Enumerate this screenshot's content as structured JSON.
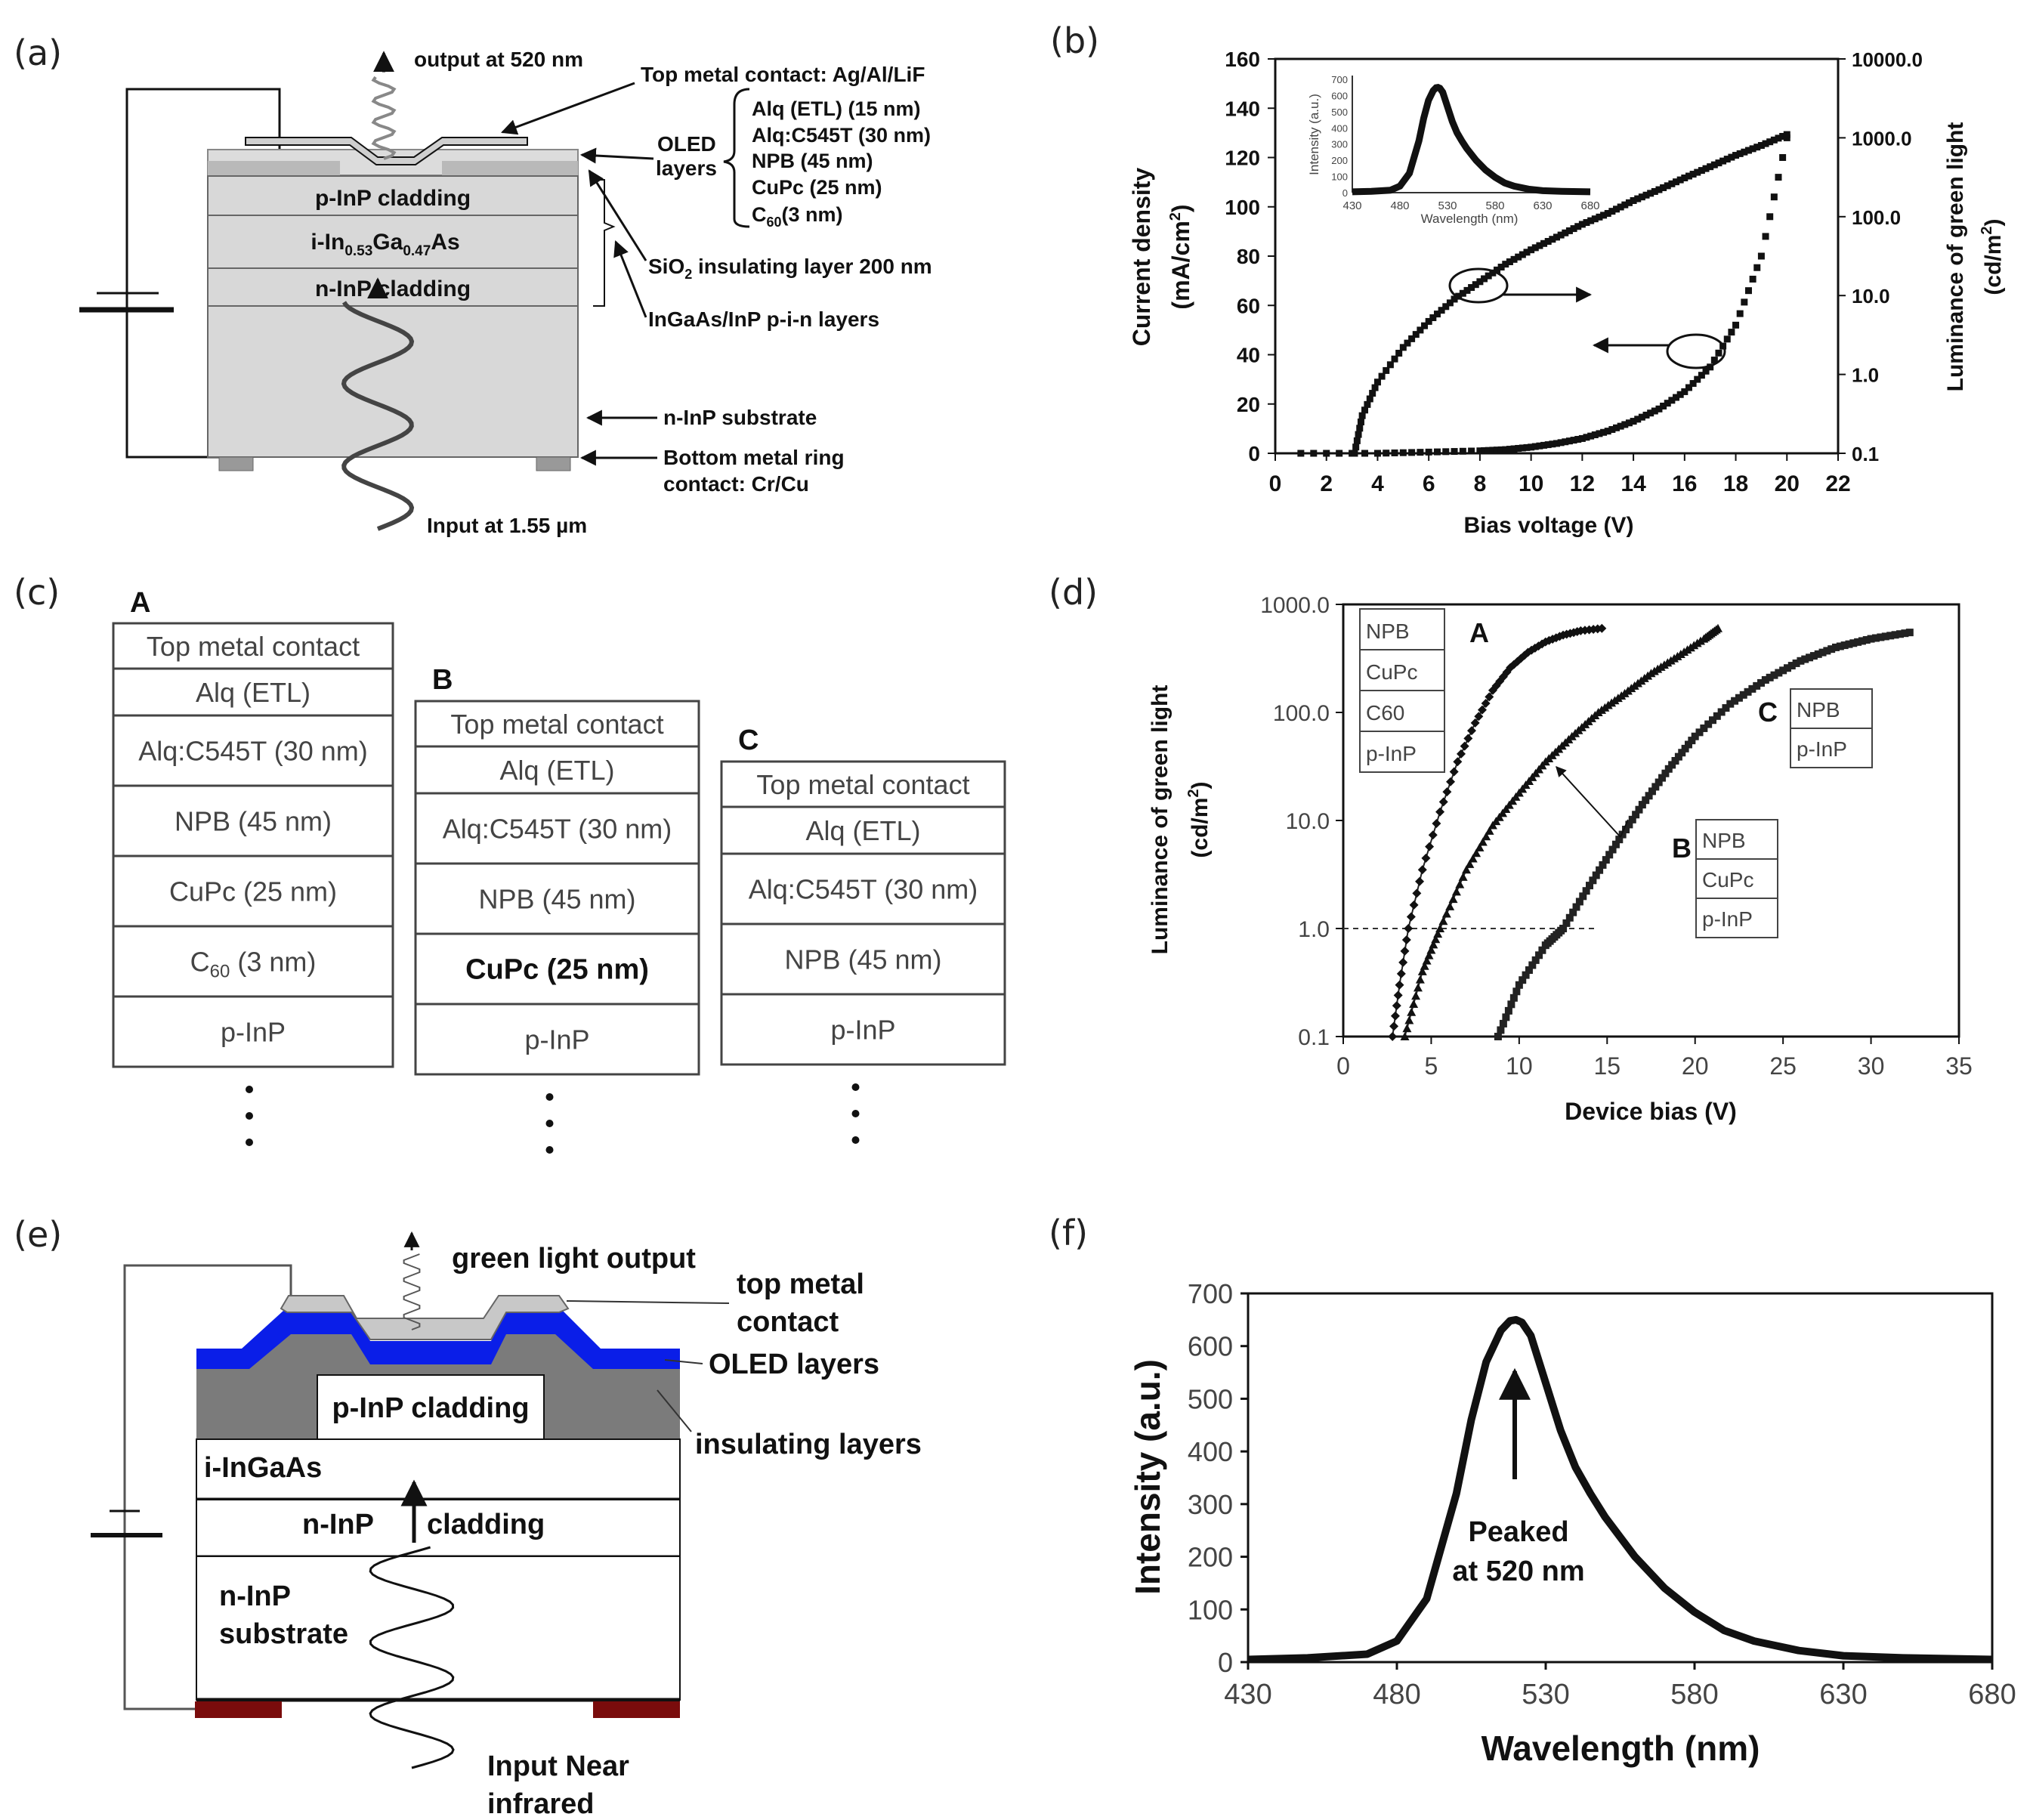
{
  "panels": {
    "a": "(a)",
    "b": "(b)",
    "c": "(c)",
    "d": "(d)",
    "e": "(e)",
    "f": "(f)"
  },
  "a": {
    "output": "output at 520 nm",
    "top_contact": "Top metal contact: Ag/Al/LiF",
    "oled": "OLED",
    "layers_word": "layers",
    "oled_layers": [
      "Alq (ETL) (15 nm)",
      "Alq:C545T (30 nm)",
      "NPB (45 nm)",
      "CuPc (25 nm)",
      "C60(3 nm)"
    ],
    "p_clad": "p-InP cladding",
    "i_layer": "i-In0.53Ga0.47As",
    "n_clad": "n-InP cladding",
    "sio2": "SiO2 insulating layer 200 nm",
    "pin": "InGaAs/InP p-i-n layers",
    "substrate": "n-InP substrate",
    "bottom1": "Bottom metal ring",
    "bottom2": "contact: Cr/Cu",
    "input": "Input at 1.55 µm"
  },
  "c": {
    "stacks": [
      {
        "name": "A",
        "layers": [
          "Top metal contact",
          "Alq (ETL)",
          "Alq:C545T (30 nm)",
          "NPB (45 nm)",
          "CuPc (25 nm)",
          "C60 (3 nm)",
          "p-InP"
        ]
      },
      {
        "name": "B",
        "layers": [
          "Top metal contact",
          "Alq (ETL)",
          "Alq:C545T (30 nm)",
          "NPB (45 nm)",
          "CuPc (25 nm)",
          "p-InP"
        ]
      },
      {
        "name": "C",
        "layers": [
          "Top metal contact",
          "Alq (ETL)",
          "Alq:C545T (30 nm)",
          "NPB (45 nm)",
          "p-InP"
        ]
      }
    ]
  },
  "e": {
    "output": "green light output",
    "top1": "top metal",
    "top2": "contact",
    "oled": "OLED layers",
    "p_clad": "p-InP cladding",
    "insulating": "insulating layers",
    "i_layer": "i-InGaAs",
    "n_left": "n-InP",
    "n_right": "cladding",
    "sub1": "n-InP",
    "sub2": "substrate",
    "in1": "Input Near",
    "in2": "infrared",
    "colors": {
      "oled": "#0a1ee8",
      "insulating": "#7b7b7b",
      "contact": "#c8c8c8",
      "ring": "#7a0c0c"
    }
  },
  "chart_data": [
    {
      "id": "b",
      "type": "scatter",
      "xlabel": "Bias voltage (V)",
      "ylabel": "Current density (mA/cm2)",
      "y2label": "Luminance of green light (cd/m2)",
      "xlim": [
        0,
        22
      ],
      "ylim": [
        0,
        160
      ],
      "y2lim": [
        0.1,
        10000
      ],
      "y2scale": "log",
      "xticks": [
        0,
        2,
        4,
        6,
        8,
        10,
        12,
        14,
        16,
        18,
        20,
        22
      ],
      "yticks": [
        0,
        20,
        40,
        60,
        80,
        100,
        120,
        140,
        160
      ],
      "y2ticks": [
        "0.1",
        "1.0",
        "10.0",
        "100.0",
        "1000.0",
        "10000.0"
      ],
      "series": [
        {
          "axis": "left",
          "x": [
            1,
            4,
            6,
            8,
            9,
            10,
            11,
            12,
            13,
            14,
            15,
            16,
            17,
            18,
            19,
            20
          ],
          "y": [
            0,
            0,
            0.5,
            1,
            1.5,
            2.5,
            4,
            6,
            9,
            13,
            18,
            25,
            35,
            52,
            80,
            128
          ]
        },
        {
          "axis": "right",
          "x": [
            3.1,
            3.4,
            4,
            5,
            6,
            7,
            8,
            9,
            10,
            11,
            12,
            13,
            14,
            15,
            16,
            17,
            18,
            19,
            20
          ],
          "y": [
            0.1,
            0.3,
            0.8,
            2.2,
            4.7,
            9,
            15,
            25,
            38,
            55,
            80,
            110,
            160,
            220,
            310,
            430,
            600,
            800,
            1100
          ]
        }
      ],
      "inset": {
        "xlabel": "Wavelength (nm)",
        "ylabel": "Intensity (a.u.)",
        "xticks": [
          430,
          480,
          530,
          580,
          630,
          680
        ],
        "yticks": [
          0,
          100,
          200,
          300,
          400,
          500,
          600,
          700
        ]
      }
    },
    {
      "id": "d",
      "type": "scatter",
      "xlabel": "Device bias (V)",
      "ylabel": "Luminance of green light (cd/m2)",
      "xlim": [
        0,
        35
      ],
      "ylim": [
        0.1,
        1000
      ],
      "yscale": "log",
      "xticks": [
        0,
        5,
        10,
        15,
        20,
        25,
        30,
        35
      ],
      "yticks": [
        "0.1",
        "1.0",
        "10.0",
        "100.0",
        "1000.0"
      ],
      "series": [
        {
          "name": "A",
          "legend": [
            "NPB",
            "CuPc",
            "C60",
            "p-InP"
          ],
          "x": [
            2.8,
            3.2,
            3.7,
            4.5,
            5.5,
            6.5,
            7.5,
            8.5,
            9.5,
            10.5,
            11.5,
            12.5,
            13.5,
            14.7
          ],
          "y": [
            0.1,
            0.3,
            1.0,
            3.5,
            12,
            35,
            80,
            160,
            260,
            360,
            450,
            520,
            570,
            600
          ]
        },
        {
          "name": "B",
          "legend": [
            "NPB",
            "CuPc",
            "p-InP"
          ],
          "x": [
            3.5,
            4.5,
            5.5,
            7,
            8.5,
            10,
            11.5,
            13,
            14.5,
            16,
            17.5,
            19,
            20.5,
            21.3
          ],
          "y": [
            0.1,
            0.4,
            1.0,
            3.5,
            9,
            18,
            35,
            60,
            100,
            150,
            230,
            330,
            480,
            600
          ]
        },
        {
          "name": "C",
          "legend": [
            "NPB",
            "p-InP"
          ],
          "x": [
            8.8,
            10,
            11.5,
            12.5,
            14,
            15.5,
            17,
            18.5,
            20,
            22,
            24,
            26,
            28,
            30,
            32.2
          ],
          "y": [
            0.1,
            0.3,
            0.7,
            1.0,
            2.5,
            6,
            14,
            30,
            60,
            120,
            200,
            300,
            400,
            480,
            550
          ]
        }
      ],
      "reference_line_y": 1.0
    },
    {
      "id": "f",
      "type": "line",
      "xlabel": "Wavelength (nm)",
      "ylabel": "Intensity (a.u.)",
      "xlim": [
        430,
        680
      ],
      "ylim": [
        0,
        700
      ],
      "xticks": [
        430,
        480,
        530,
        580,
        630,
        680
      ],
      "yticks": [
        0,
        100,
        200,
        300,
        400,
        500,
        600,
        700
      ],
      "annotation": [
        "Peaked",
        "at 520 nm"
      ],
      "x": [
        430,
        450,
        470,
        480,
        490,
        500,
        505,
        510,
        515,
        518,
        520,
        522,
        525,
        530,
        535,
        540,
        545,
        550,
        560,
        570,
        580,
        590,
        600,
        615,
        630,
        650,
        680
      ],
      "y": [
        5,
        8,
        15,
        40,
        120,
        320,
        460,
        570,
        630,
        648,
        650,
        645,
        620,
        530,
        440,
        370,
        320,
        275,
        200,
        140,
        95,
        60,
        40,
        22,
        12,
        8,
        5
      ]
    }
  ]
}
